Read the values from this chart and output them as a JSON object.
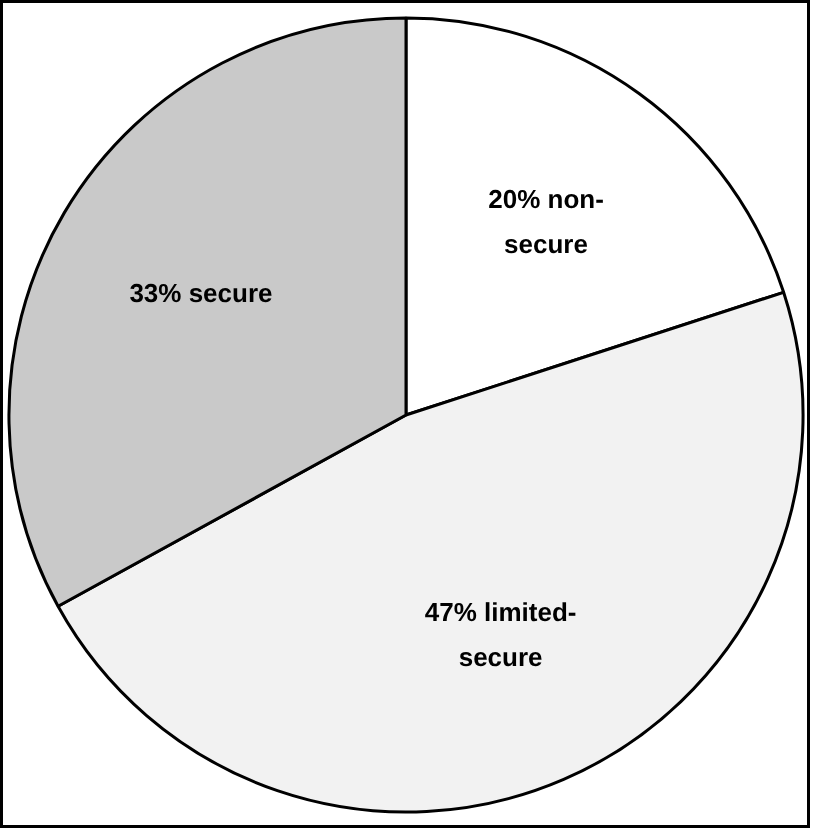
{
  "chart_data": {
    "type": "pie",
    "categories": [
      "20% non-secure",
      "47% limited-secure",
      "33% secure"
    ],
    "values": [
      20,
      47,
      33
    ],
    "colors": [
      "#ffffff",
      "#f2f2f2",
      "#c9c9c9"
    ]
  }
}
